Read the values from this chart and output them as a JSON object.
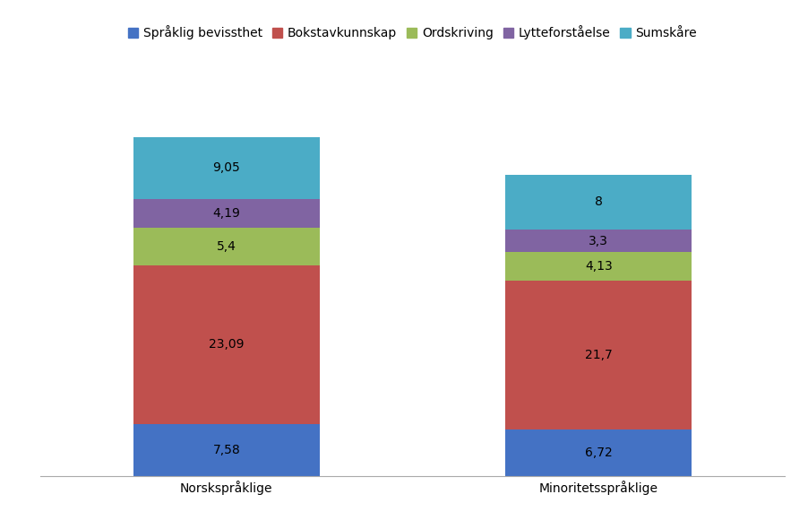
{
  "categories": [
    "Norskspråklige",
    "Minoritetsspråklige"
  ],
  "series": [
    {
      "name": "Språklig bevissthet",
      "values": [
        7.58,
        6.72
      ],
      "color": "#4472C4"
    },
    {
      "name": "Bokstavkunnskap",
      "values": [
        23.09,
        21.7
      ],
      "color": "#C0504D"
    },
    {
      "name": "Ordskriving",
      "values": [
        5.4,
        4.13
      ],
      "color": "#9BBB59"
    },
    {
      "name": "Lytteforståelse",
      "values": [
        4.19,
        3.3
      ],
      "color": "#8064A2"
    },
    {
      "name": "Sumskåre",
      "values": [
        9.05,
        8.0
      ],
      "color": "#4BACC6"
    }
  ],
  "value_labels": [
    "7,58",
    "23,09",
    "5,4",
    "4,19",
    "9,05",
    "6,72",
    "21,7",
    "4,13",
    "3,3",
    "8"
  ],
  "bar_width": 0.25,
  "background_color": "#FFFFFF",
  "label_fontsize": 10,
  "legend_fontsize": 10,
  "tick_fontsize": 10,
  "ylim": [
    0,
    60
  ],
  "label_color": "#000000",
  "x_positions": [
    0.25,
    0.75
  ]
}
